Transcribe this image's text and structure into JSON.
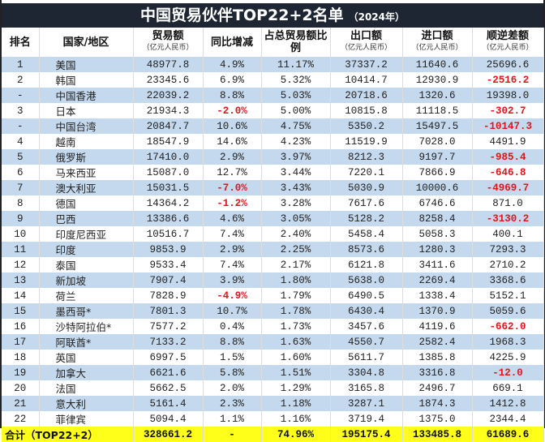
{
  "title": "中国贸易伙伴TOP22+2名单",
  "subtitle": "（2024年）",
  "colors": {
    "header_bg": "#1e2633",
    "row_alt": "#c5d9ee",
    "negative": "#e3141c",
    "total_bg": "#ffff1a"
  },
  "headers": [
    {
      "label": "排名",
      "unit": ""
    },
    {
      "label": "国家/地区",
      "unit": ""
    },
    {
      "label": "贸易额",
      "unit": "（亿元人民币）"
    },
    {
      "label": "同比增减",
      "unit": ""
    },
    {
      "label": "占总贸易额比例",
      "unit": ""
    },
    {
      "label": "出口额",
      "unit": "（亿元人民币）"
    },
    {
      "label": "进口额",
      "unit": "（亿元人民币）"
    },
    {
      "label": "顺逆差额",
      "unit": "（亿元人民币）"
    }
  ],
  "rows": [
    [
      "1",
      "美国",
      "48977.8",
      "4.9%",
      "11.17%",
      "37337.2",
      "11640.6",
      "25696.6"
    ],
    [
      "2",
      "韩国",
      "23345.6",
      "6.9%",
      "5.32%",
      "10414.7",
      "12930.9",
      "-2516.2"
    ],
    [
      "-",
      "中国香港",
      "22039.2",
      "8.8%",
      "5.03%",
      "20718.6",
      "1320.6",
      "19398.0"
    ],
    [
      "3",
      "日本",
      "21934.3",
      "-2.0%",
      "5.00%",
      "10815.8",
      "11118.5",
      "-302.7"
    ],
    [
      "-",
      "中国台湾",
      "20847.7",
      "10.6%",
      "4.75%",
      "5350.2",
      "15497.5",
      "-10147.3"
    ],
    [
      "4",
      "越南",
      "18547.9",
      "14.6%",
      "4.23%",
      "11519.9",
      "7028.0",
      "4491.9"
    ],
    [
      "5",
      "俄罗斯",
      "17410.0",
      "2.9%",
      "3.97%",
      "8212.3",
      "9197.7",
      "-985.4"
    ],
    [
      "6",
      "马来西亚",
      "15087.0",
      "12.7%",
      "3.44%",
      "7220.1",
      "7866.9",
      "-646.8"
    ],
    [
      "7",
      "澳大利亚",
      "15031.5",
      "-7.0%",
      "3.43%",
      "5030.9",
      "10000.6",
      "-4969.7"
    ],
    [
      "8",
      "德国",
      "14364.2",
      "-1.2%",
      "3.28%",
      "7617.6",
      "6746.6",
      "871.0"
    ],
    [
      "9",
      "巴西",
      "13386.6",
      "4.6%",
      "3.05%",
      "5128.2",
      "8258.4",
      "-3130.2"
    ],
    [
      "10",
      "印度尼西亚",
      "10516.7",
      "7.4%",
      "2.40%",
      "5458.4",
      "5058.3",
      "400.1"
    ],
    [
      "11",
      "印度",
      "9853.9",
      "2.9%",
      "2.25%",
      "8573.6",
      "1280.3",
      "7293.3"
    ],
    [
      "12",
      "泰国",
      "9533.4",
      "7.4%",
      "2.17%",
      "6121.8",
      "3411.6",
      "2710.2"
    ],
    [
      "13",
      "新加坡",
      "7907.4",
      "3.9%",
      "1.80%",
      "5638.0",
      "2269.4",
      "3368.6"
    ],
    [
      "14",
      "荷兰",
      "7828.9",
      "-4.9%",
      "1.79%",
      "6490.5",
      "1338.4",
      "5152.1"
    ],
    [
      "15",
      "墨西哥*",
      "7801.3",
      "10.7%",
      "1.78%",
      "6430.4",
      "1370.9",
      "5059.6"
    ],
    [
      "16",
      "沙特阿拉伯*",
      "7577.2",
      "0.4%",
      "1.73%",
      "3457.6",
      "4119.6",
      "-662.0"
    ],
    [
      "17",
      "阿联酋*",
      "7133.2",
      "8.8%",
      "1.63%",
      "4550.7",
      "2582.4",
      "1968.3"
    ],
    [
      "18",
      "英国",
      "6997.5",
      "1.5%",
      "1.60%",
      "5611.7",
      "1385.8",
      "4225.9"
    ],
    [
      "19",
      "加拿大",
      "6621.6",
      "5.8%",
      "1.51%",
      "3304.8",
      "3316.8",
      "-12.0"
    ],
    [
      "20",
      "法国",
      "5662.5",
      "2.0%",
      "1.29%",
      "3165.8",
      "2496.7",
      "669.1"
    ],
    [
      "21",
      "意大利",
      "5161.4",
      "2.3%",
      "1.18%",
      "3287.1",
      "1874.3",
      "1412.8"
    ],
    [
      "22",
      "菲律宾",
      "5094.4",
      "1.1%",
      "1.16%",
      "3719.4",
      "1375.0",
      "2344.4"
    ]
  ],
  "total": {
    "label": "合计（TOP22+2）",
    "trade": "328661.2",
    "yoy": "-",
    "share": "74.96%",
    "export": "195175.4",
    "import": "133485.8",
    "balance": "61689.6"
  }
}
